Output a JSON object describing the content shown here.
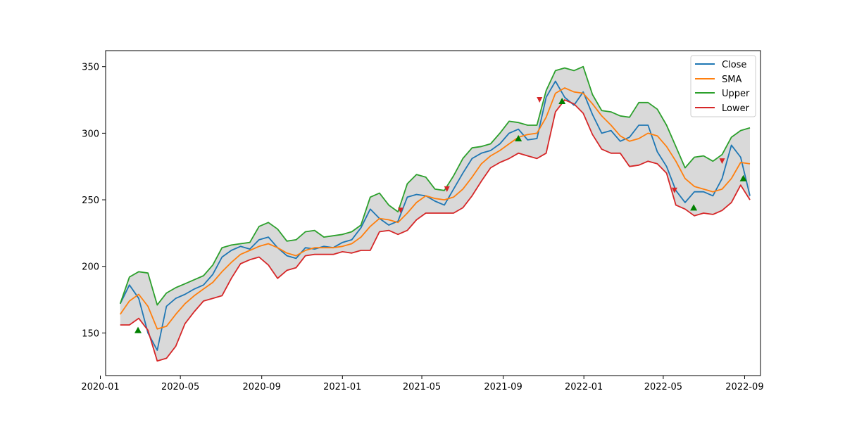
{
  "chart_data": {
    "type": "line",
    "title": "",
    "xlabel": "",
    "ylabel": "",
    "xlim": [
      "2020-01-09",
      "2022-09-25"
    ],
    "ylim": [
      118,
      362
    ],
    "grid": false,
    "legend_position": "top-right",
    "band_fill": "between Upper and Lower, light gray",
    "x_ticks": [
      "2020-01",
      "2020-05",
      "2020-09",
      "2021-01",
      "2021-05",
      "2021-09",
      "2022-01",
      "2022-05",
      "2022-09"
    ],
    "y_ticks": [
      150,
      200,
      250,
      300,
      350
    ],
    "dates": [
      "2020-01-31",
      "2020-02-14",
      "2020-02-28",
      "2020-03-13",
      "2020-03-27",
      "2020-04-10",
      "2020-04-24",
      "2020-05-08",
      "2020-05-22",
      "2020-06-05",
      "2020-06-19",
      "2020-07-03",
      "2020-07-17",
      "2020-07-31",
      "2020-08-14",
      "2020-08-28",
      "2020-09-11",
      "2020-09-25",
      "2020-10-09",
      "2020-10-23",
      "2020-11-06",
      "2020-11-20",
      "2020-12-04",
      "2020-12-18",
      "2021-01-01",
      "2021-01-15",
      "2021-01-29",
      "2021-02-12",
      "2021-02-26",
      "2021-03-12",
      "2021-03-26",
      "2021-04-09",
      "2021-04-23",
      "2021-05-07",
      "2021-05-21",
      "2021-06-04",
      "2021-06-18",
      "2021-07-02",
      "2021-07-16",
      "2021-07-30",
      "2021-08-13",
      "2021-08-27",
      "2021-09-10",
      "2021-09-24",
      "2021-10-08",
      "2021-10-22",
      "2021-11-05",
      "2021-11-19",
      "2021-12-03",
      "2021-12-17",
      "2021-12-31",
      "2022-01-14",
      "2022-01-28",
      "2022-02-11",
      "2022-02-25",
      "2022-03-11",
      "2022-03-25",
      "2022-04-08",
      "2022-04-22",
      "2022-05-06",
      "2022-05-20",
      "2022-06-03",
      "2022-06-17",
      "2022-07-01",
      "2022-07-15",
      "2022-07-29",
      "2022-08-12",
      "2022-08-26",
      "2022-09-09"
    ],
    "series": [
      {
        "name": "Close",
        "color": "#1f77b4",
        "values": [
          172,
          186,
          176,
          150,
          137,
          170,
          176,
          179,
          183,
          186,
          194,
          207,
          212,
          215,
          213,
          220,
          222,
          214,
          208,
          206,
          214,
          213,
          215,
          214,
          218,
          220,
          229,
          243,
          236,
          231,
          234,
          252,
          254,
          253,
          249,
          246,
          258,
          270,
          281,
          285,
          287,
          292,
          300,
          303,
          295,
          296,
          327,
          339,
          327,
          321,
          331,
          314,
          300,
          302,
          294,
          297,
          306,
          306,
          286,
          275,
          257,
          248,
          256,
          256,
          253,
          266,
          291,
          282,
          253
        ]
      },
      {
        "name": "SMA",
        "color": "#ff7f0e",
        "values": [
          164,
          174,
          179,
          170,
          153,
          155,
          164,
          172,
          178,
          183,
          188,
          196,
          203,
          209,
          212,
          215,
          217,
          214,
          210,
          208,
          212,
          214,
          214,
          214,
          215,
          217,
          222,
          230,
          236,
          235,
          233,
          240,
          248,
          253,
          251,
          250,
          252,
          258,
          267,
          277,
          283,
          287,
          292,
          297,
          299,
          300,
          312,
          330,
          334,
          331,
          330,
          322,
          313,
          306,
          298,
          294,
          296,
          300,
          298,
          290,
          279,
          266,
          260,
          258,
          256,
          258,
          266,
          278,
          277
        ]
      },
      {
        "name": "Upper",
        "color": "#2ca02c",
        "values": [
          172,
          192,
          196,
          195,
          171,
          180,
          184,
          187,
          190,
          193,
          201,
          214,
          216,
          217,
          218,
          230,
          233,
          228,
          219,
          220,
          226,
          227,
          222,
          223,
          224,
          226,
          231,
          252,
          255,
          246,
          241,
          262,
          269,
          267,
          258,
          257,
          268,
          281,
          289,
          290,
          292,
          300,
          309,
          308,
          306,
          306,
          332,
          347,
          349,
          347,
          350,
          329,
          317,
          316,
          313,
          312,
          323,
          323,
          318,
          306,
          290,
          274,
          282,
          283,
          279,
          284,
          297,
          302,
          304
        ]
      },
      {
        "name": "Lower",
        "color": "#d62728",
        "values": [
          156,
          156,
          161,
          152,
          129,
          131,
          140,
          157,
          166,
          174,
          176,
          178,
          191,
          202,
          205,
          207,
          201,
          191,
          197,
          199,
          208,
          209,
          209,
          209,
          211,
          210,
          212,
          212,
          226,
          227,
          224,
          227,
          235,
          240,
          240,
          240,
          240,
          244,
          253,
          264,
          274,
          278,
          281,
          285,
          283,
          281,
          285,
          316,
          325,
          322,
          315,
          299,
          288,
          285,
          285,
          275,
          276,
          279,
          277,
          270,
          246,
          243,
          238,
          240,
          239,
          242,
          248,
          261,
          250
        ]
      }
    ],
    "buy_signals": [
      {
        "date": "2020-02-27",
        "value": 152
      },
      {
        "date": "2021-09-24",
        "value": 296
      },
      {
        "date": "2021-11-29",
        "value": 324
      },
      {
        "date": "2022-06-16",
        "value": 244
      },
      {
        "date": "2022-08-30",
        "value": 266
      }
    ],
    "sell_signals": [
      {
        "date": "2021-03-30",
        "value": 242
      },
      {
        "date": "2021-06-08",
        "value": 258
      },
      {
        "date": "2021-10-26",
        "value": 325
      },
      {
        "date": "2022-05-18",
        "value": 257
      },
      {
        "date": "2022-07-29",
        "value": 279
      }
    ],
    "signal_colors": {
      "buy": "#008000",
      "sell": "#d62728"
    }
  }
}
